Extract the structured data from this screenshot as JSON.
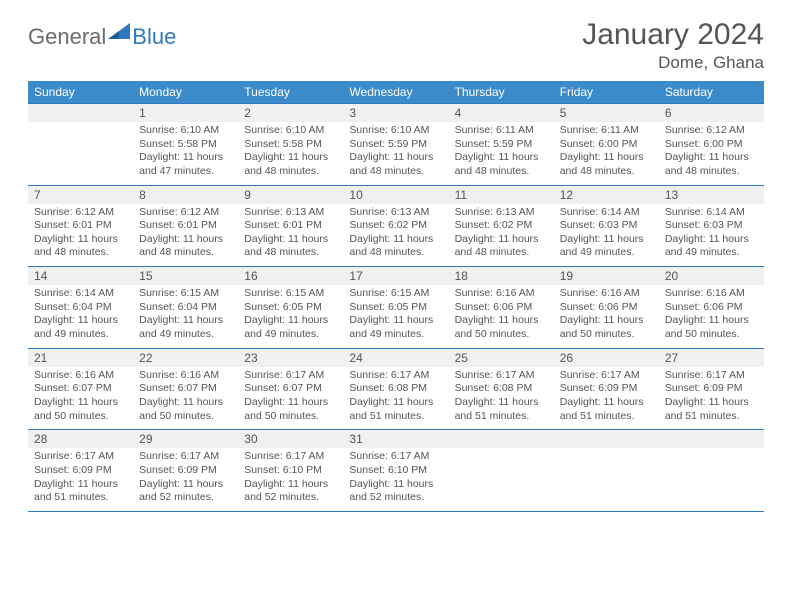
{
  "logo": {
    "part1": "General",
    "part2": "Blue"
  },
  "title": "January 2024",
  "location": "Dome, Ghana",
  "colors": {
    "header_bg": "#3b8aca",
    "rule": "#2f78bd",
    "daynum_bg": "#f0f0f0",
    "text": "#555555",
    "page_bg": "#ffffff"
  },
  "dayNames": [
    "Sunday",
    "Monday",
    "Tuesday",
    "Wednesday",
    "Thursday",
    "Friday",
    "Saturday"
  ],
  "weeks": [
    [
      {
        "n": "",
        "sunrise": "",
        "sunset": "",
        "daylight": ""
      },
      {
        "n": "1",
        "sunrise": "Sunrise: 6:10 AM",
        "sunset": "Sunset: 5:58 PM",
        "daylight": "Daylight: 11 hours and 47 minutes."
      },
      {
        "n": "2",
        "sunrise": "Sunrise: 6:10 AM",
        "sunset": "Sunset: 5:58 PM",
        "daylight": "Daylight: 11 hours and 48 minutes."
      },
      {
        "n": "3",
        "sunrise": "Sunrise: 6:10 AM",
        "sunset": "Sunset: 5:59 PM",
        "daylight": "Daylight: 11 hours and 48 minutes."
      },
      {
        "n": "4",
        "sunrise": "Sunrise: 6:11 AM",
        "sunset": "Sunset: 5:59 PM",
        "daylight": "Daylight: 11 hours and 48 minutes."
      },
      {
        "n": "5",
        "sunrise": "Sunrise: 6:11 AM",
        "sunset": "Sunset: 6:00 PM",
        "daylight": "Daylight: 11 hours and 48 minutes."
      },
      {
        "n": "6",
        "sunrise": "Sunrise: 6:12 AM",
        "sunset": "Sunset: 6:00 PM",
        "daylight": "Daylight: 11 hours and 48 minutes."
      }
    ],
    [
      {
        "n": "7",
        "sunrise": "Sunrise: 6:12 AM",
        "sunset": "Sunset: 6:01 PM",
        "daylight": "Daylight: 11 hours and 48 minutes."
      },
      {
        "n": "8",
        "sunrise": "Sunrise: 6:12 AM",
        "sunset": "Sunset: 6:01 PM",
        "daylight": "Daylight: 11 hours and 48 minutes."
      },
      {
        "n": "9",
        "sunrise": "Sunrise: 6:13 AM",
        "sunset": "Sunset: 6:01 PM",
        "daylight": "Daylight: 11 hours and 48 minutes."
      },
      {
        "n": "10",
        "sunrise": "Sunrise: 6:13 AM",
        "sunset": "Sunset: 6:02 PM",
        "daylight": "Daylight: 11 hours and 48 minutes."
      },
      {
        "n": "11",
        "sunrise": "Sunrise: 6:13 AM",
        "sunset": "Sunset: 6:02 PM",
        "daylight": "Daylight: 11 hours and 48 minutes."
      },
      {
        "n": "12",
        "sunrise": "Sunrise: 6:14 AM",
        "sunset": "Sunset: 6:03 PM",
        "daylight": "Daylight: 11 hours and 49 minutes."
      },
      {
        "n": "13",
        "sunrise": "Sunrise: 6:14 AM",
        "sunset": "Sunset: 6:03 PM",
        "daylight": "Daylight: 11 hours and 49 minutes."
      }
    ],
    [
      {
        "n": "14",
        "sunrise": "Sunrise: 6:14 AM",
        "sunset": "Sunset: 6:04 PM",
        "daylight": "Daylight: 11 hours and 49 minutes."
      },
      {
        "n": "15",
        "sunrise": "Sunrise: 6:15 AM",
        "sunset": "Sunset: 6:04 PM",
        "daylight": "Daylight: 11 hours and 49 minutes."
      },
      {
        "n": "16",
        "sunrise": "Sunrise: 6:15 AM",
        "sunset": "Sunset: 6:05 PM",
        "daylight": "Daylight: 11 hours and 49 minutes."
      },
      {
        "n": "17",
        "sunrise": "Sunrise: 6:15 AM",
        "sunset": "Sunset: 6:05 PM",
        "daylight": "Daylight: 11 hours and 49 minutes."
      },
      {
        "n": "18",
        "sunrise": "Sunrise: 6:16 AM",
        "sunset": "Sunset: 6:06 PM",
        "daylight": "Daylight: 11 hours and 50 minutes."
      },
      {
        "n": "19",
        "sunrise": "Sunrise: 6:16 AM",
        "sunset": "Sunset: 6:06 PM",
        "daylight": "Daylight: 11 hours and 50 minutes."
      },
      {
        "n": "20",
        "sunrise": "Sunrise: 6:16 AM",
        "sunset": "Sunset: 6:06 PM",
        "daylight": "Daylight: 11 hours and 50 minutes."
      }
    ],
    [
      {
        "n": "21",
        "sunrise": "Sunrise: 6:16 AM",
        "sunset": "Sunset: 6:07 PM",
        "daylight": "Daylight: 11 hours and 50 minutes."
      },
      {
        "n": "22",
        "sunrise": "Sunrise: 6:16 AM",
        "sunset": "Sunset: 6:07 PM",
        "daylight": "Daylight: 11 hours and 50 minutes."
      },
      {
        "n": "23",
        "sunrise": "Sunrise: 6:17 AM",
        "sunset": "Sunset: 6:07 PM",
        "daylight": "Daylight: 11 hours and 50 minutes."
      },
      {
        "n": "24",
        "sunrise": "Sunrise: 6:17 AM",
        "sunset": "Sunset: 6:08 PM",
        "daylight": "Daylight: 11 hours and 51 minutes."
      },
      {
        "n": "25",
        "sunrise": "Sunrise: 6:17 AM",
        "sunset": "Sunset: 6:08 PM",
        "daylight": "Daylight: 11 hours and 51 minutes."
      },
      {
        "n": "26",
        "sunrise": "Sunrise: 6:17 AM",
        "sunset": "Sunset: 6:09 PM",
        "daylight": "Daylight: 11 hours and 51 minutes."
      },
      {
        "n": "27",
        "sunrise": "Sunrise: 6:17 AM",
        "sunset": "Sunset: 6:09 PM",
        "daylight": "Daylight: 11 hours and 51 minutes."
      }
    ],
    [
      {
        "n": "28",
        "sunrise": "Sunrise: 6:17 AM",
        "sunset": "Sunset: 6:09 PM",
        "daylight": "Daylight: 11 hours and 51 minutes."
      },
      {
        "n": "29",
        "sunrise": "Sunrise: 6:17 AM",
        "sunset": "Sunset: 6:09 PM",
        "daylight": "Daylight: 11 hours and 52 minutes."
      },
      {
        "n": "30",
        "sunrise": "Sunrise: 6:17 AM",
        "sunset": "Sunset: 6:10 PM",
        "daylight": "Daylight: 11 hours and 52 minutes."
      },
      {
        "n": "31",
        "sunrise": "Sunrise: 6:17 AM",
        "sunset": "Sunset: 6:10 PM",
        "daylight": "Daylight: 11 hours and 52 minutes."
      },
      {
        "n": "",
        "sunrise": "",
        "sunset": "",
        "daylight": ""
      },
      {
        "n": "",
        "sunrise": "",
        "sunset": "",
        "daylight": ""
      },
      {
        "n": "",
        "sunrise": "",
        "sunset": "",
        "daylight": ""
      }
    ]
  ]
}
